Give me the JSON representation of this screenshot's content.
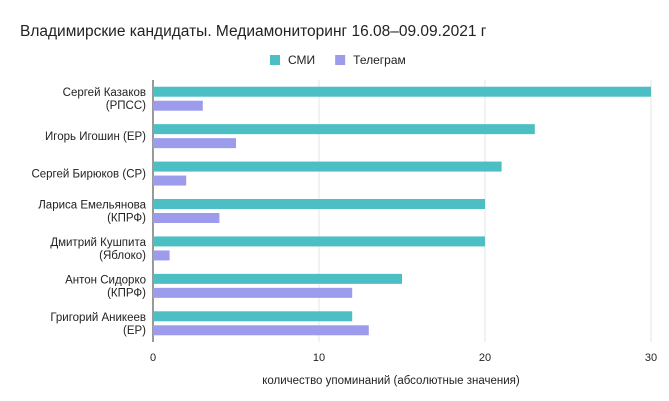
{
  "chart_data": {
    "type": "bar",
    "orientation": "horizontal",
    "title": "Владимирские кандидаты. Медиамониторинг 16.08–09.09.2021 г",
    "xlabel": "количество упоминаний (абсолютные значения)",
    "ylabel": "",
    "xlim": [
      0,
      30
    ],
    "xticks": [
      0,
      10,
      20,
      30
    ],
    "grid": true,
    "legend_position": "top",
    "categories": [
      [
        "Сергей Казаков",
        "(РПСС)"
      ],
      [
        "Игорь Игошин (ЕР)"
      ],
      [
        "Сергей Бирюков (СР)"
      ],
      [
        "Лариса Емельянова",
        "(КПРФ)"
      ],
      [
        "Дмитрий Кушпита",
        "(Яблоко)"
      ],
      [
        "Антон Сидорко",
        "(КПРФ)"
      ],
      [
        "Григорий Аникеев",
        "(ЕР)"
      ]
    ],
    "series": [
      {
        "name": "СМИ",
        "color": "#4bbfc3",
        "values": [
          30,
          23,
          21,
          20,
          20,
          15,
          12
        ]
      },
      {
        "name": "Телеграм",
        "color": "#9d9cec",
        "values": [
          3,
          5,
          2,
          4,
          1,
          12,
          13
        ]
      }
    ]
  }
}
